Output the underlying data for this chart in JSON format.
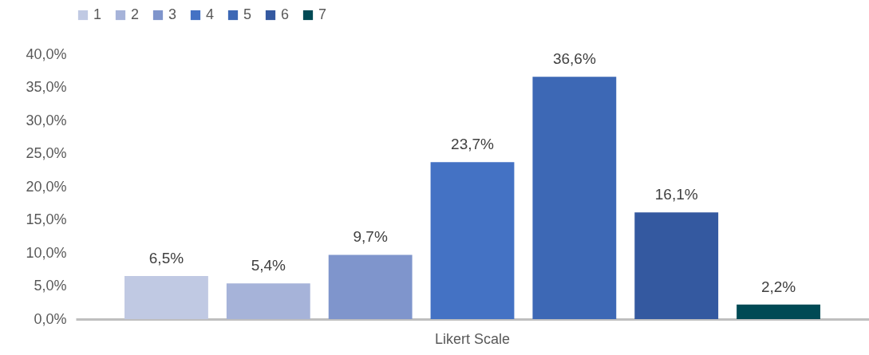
{
  "chart_data": {
    "type": "bar",
    "categories": [
      "Likert Scale"
    ],
    "legend": "top",
    "ylim": [
      0,
      40
    ],
    "yticks": [
      {
        "value": 0,
        "label": "0,0%"
      },
      {
        "value": 5,
        "label": "5,0%"
      },
      {
        "value": 10,
        "label": "10,0%"
      },
      {
        "value": 15,
        "label": "15,0%"
      },
      {
        "value": 20,
        "label": "20,0%"
      },
      {
        "value": 25,
        "label": "25,0%"
      },
      {
        "value": 30,
        "label": "30,0%"
      },
      {
        "value": 35,
        "label": "35,0%"
      },
      {
        "value": 40,
        "label": "40,0%"
      }
    ],
    "series": [
      {
        "name": "1",
        "color": "#c0c9e3",
        "values": [
          6.5
        ],
        "value_labels": [
          "6,5%"
        ]
      },
      {
        "name": "2",
        "color": "#a6b3d9",
        "values": [
          5.4
        ],
        "value_labels": [
          "5,4%"
        ]
      },
      {
        "name": "3",
        "color": "#7f95cc",
        "values": [
          9.7
        ],
        "value_labels": [
          "9,7%"
        ]
      },
      {
        "name": "4",
        "color": "#4472c4",
        "values": [
          23.7
        ],
        "value_labels": [
          "23,7%"
        ]
      },
      {
        "name": "5",
        "color": "#3d68b5",
        "values": [
          36.6
        ],
        "value_labels": [
          "36,6%"
        ]
      },
      {
        "name": "6",
        "color": "#3459a0",
        "values": [
          16.1
        ],
        "value_labels": [
          "16,1%"
        ]
      },
      {
        "name": "7",
        "color": "#004a55",
        "values": [
          2.2
        ],
        "value_labels": [
          "2,2%"
        ]
      }
    ]
  }
}
